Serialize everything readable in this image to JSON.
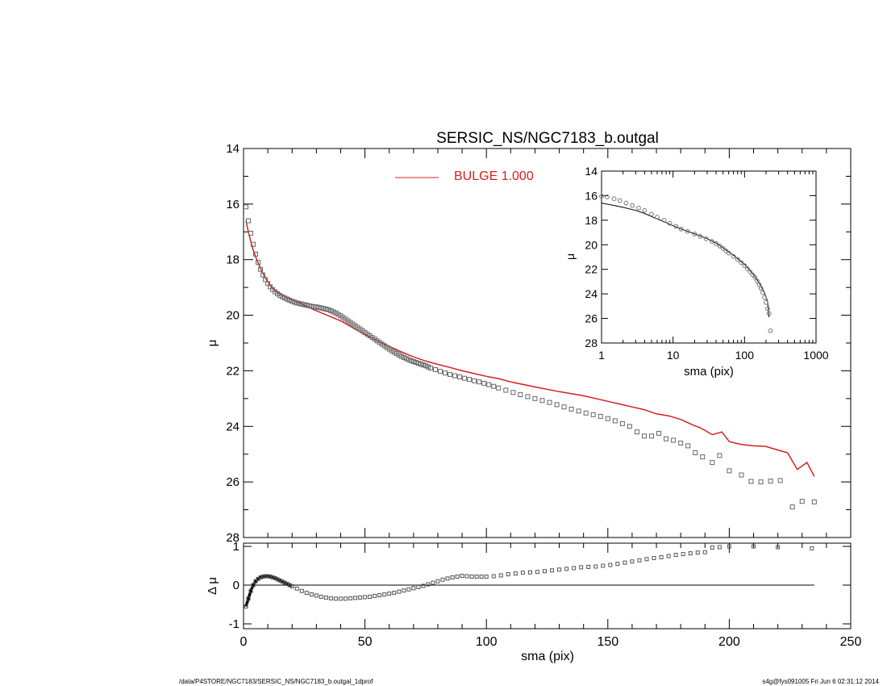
{
  "chart_data": [
    {
      "type": "scatter",
      "title": "SERSIC_NS/NGC7183_b.outgal",
      "xlabel": "",
      "ylabel": "μ",
      "xlim": [
        0,
        250
      ],
      "ylim": [
        28,
        14
      ],
      "x_ticks": [
        "0",
        "50",
        "100",
        "150",
        "200",
        "250"
      ],
      "y_ticks": [
        "14",
        "16",
        "18",
        "20",
        "22",
        "24",
        "26",
        "28"
      ],
      "legend": {
        "label": "BULGE  1.000",
        "color": "#d62020",
        "placement": "top-center"
      },
      "series": [
        {
          "role": "observed profile (squares)",
          "color": "#666666",
          "x": [
            1,
            2,
            3,
            4,
            5,
            6,
            7,
            8,
            9,
            10,
            11,
            12,
            13,
            14,
            15,
            16,
            17,
            18,
            19,
            20,
            21,
            22,
            23,
            24,
            25,
            26,
            27,
            28,
            29,
            30,
            31,
            32,
            33,
            34,
            35,
            36,
            37,
            38,
            39,
            40,
            41,
            42,
            43,
            44,
            45,
            46,
            47,
            48,
            49,
            50,
            51,
            52,
            53,
            54,
            55,
            56,
            57,
            58,
            59,
            60,
            61,
            62,
            63,
            64,
            65,
            66,
            67,
            68,
            69,
            70,
            71,
            72,
            73,
            74,
            75,
            76,
            77,
            79,
            81,
            83,
            85,
            87,
            89,
            91,
            93,
            95,
            97,
            99,
            101,
            103,
            105,
            108,
            111,
            114,
            117,
            120,
            123,
            126,
            129,
            132,
            135,
            138,
            141,
            144,
            147,
            150,
            153,
            156,
            159,
            162,
            165,
            168,
            171,
            174,
            177,
            180,
            183,
            186,
            189,
            193,
            196,
            200,
            205,
            209,
            213,
            217,
            221,
            226,
            230,
            235
          ],
          "y": [
            16.1,
            16.6,
            17.05,
            17.45,
            17.8,
            18.1,
            18.35,
            18.55,
            18.72,
            18.86,
            18.98,
            19.08,
            19.16,
            19.23,
            19.29,
            19.34,
            19.38,
            19.42,
            19.46,
            19.5,
            19.53,
            19.56,
            19.58,
            19.6,
            19.62,
            19.64,
            19.66,
            19.68,
            19.7,
            19.7,
            19.72,
            19.74,
            19.76,
            19.78,
            19.8,
            19.84,
            19.88,
            19.92,
            19.97,
            20.02,
            20.08,
            20.14,
            20.2,
            20.26,
            20.32,
            20.38,
            20.44,
            20.5,
            20.56,
            20.62,
            20.68,
            20.74,
            20.8,
            20.86,
            20.92,
            20.98,
            21.04,
            21.1,
            21.16,
            21.22,
            21.28,
            21.33,
            21.38,
            21.43,
            21.48,
            21.52,
            21.56,
            21.6,
            21.64,
            21.67,
            21.7,
            21.73,
            21.76,
            21.79,
            21.82,
            21.86,
            21.9,
            21.96,
            22.02,
            22.08,
            22.13,
            22.18,
            22.22,
            22.27,
            22.31,
            22.36,
            22.4,
            22.45,
            22.5,
            22.56,
            22.62,
            22.7,
            22.78,
            22.86,
            22.93,
            23.0,
            23.07,
            23.14,
            23.22,
            23.3,
            23.38,
            23.45,
            23.52,
            23.58,
            23.64,
            23.72,
            23.8,
            23.9,
            24.0,
            24.2,
            24.35,
            24.35,
            24.25,
            24.45,
            24.5,
            24.6,
            24.7,
            24.95,
            25.1,
            25.3,
            25.05,
            25.6,
            25.75,
            25.98,
            26.0,
            25.97,
            25.95,
            26.9,
            26.7,
            26.72
          ]
        },
        {
          "role": "BULGE model",
          "color": "#d62020",
          "x": [
            1,
            2,
            3,
            4,
            5,
            6,
            7,
            8,
            9,
            10,
            11,
            12,
            13,
            14,
            15,
            16,
            17,
            18,
            19,
            20,
            22,
            25,
            28,
            30,
            33,
            36,
            40,
            45,
            50,
            55,
            60,
            65,
            70,
            75,
            80,
            85,
            90,
            95,
            100,
            105,
            110,
            120,
            130,
            140,
            150,
            160,
            165,
            170,
            175,
            180,
            185,
            188,
            190,
            193,
            197,
            200,
            205,
            210,
            215,
            220,
            224,
            228,
            232,
            235
          ],
          "y": [
            16.6,
            17.0,
            17.35,
            17.65,
            17.9,
            18.12,
            18.32,
            18.5,
            18.66,
            18.8,
            18.92,
            19.02,
            19.1,
            19.17,
            19.23,
            19.28,
            19.33,
            19.37,
            19.41,
            19.45,
            19.52,
            19.64,
            19.76,
            19.84,
            19.95,
            20.06,
            20.2,
            20.45,
            20.7,
            20.92,
            21.12,
            21.32,
            21.5,
            21.65,
            21.77,
            21.88,
            22.0,
            22.1,
            22.2,
            22.28,
            22.4,
            22.58,
            22.75,
            22.9,
            23.1,
            23.3,
            23.4,
            23.55,
            23.62,
            23.75,
            23.95,
            24.05,
            24.15,
            24.3,
            24.2,
            24.55,
            24.65,
            24.7,
            24.72,
            24.85,
            24.95,
            25.55,
            25.3,
            25.8
          ]
        }
      ]
    },
    {
      "type": "scatter",
      "title": "",
      "xlabel": "sma (pix)",
      "ylabel": "μ",
      "x_scale": "log",
      "xlim": [
        1,
        1000
      ],
      "ylim": [
        28,
        14
      ],
      "x_ticks": [
        "1",
        "10",
        "100",
        "1000"
      ],
      "y_ticks": [
        "14",
        "16",
        "18",
        "20",
        "22",
        "24",
        "26",
        "28"
      ],
      "series": [
        {
          "role": "observed profile (circles)",
          "color": "#777777",
          "x": [
            1,
            1.2,
            1.5,
            1.8,
            2.2,
            2.7,
            3.3,
            4,
            5,
            6,
            7.5,
            9,
            11,
            13,
            16,
            20,
            24,
            29,
            35,
            40,
            45,
            50,
            55,
            60,
            70,
            80,
            90,
            100,
            110,
            120,
            130,
            140,
            150,
            160,
            170,
            180,
            190,
            200,
            210,
            220,
            230
          ],
          "y": [
            16.05,
            16.1,
            16.25,
            16.4,
            16.6,
            16.8,
            17.0,
            17.2,
            17.5,
            17.75,
            18.0,
            18.25,
            18.5,
            18.72,
            18.92,
            19.12,
            19.32,
            19.52,
            19.72,
            19.9,
            20.1,
            20.3,
            20.5,
            20.68,
            20.95,
            21.2,
            21.45,
            21.7,
            21.95,
            22.2,
            22.45,
            22.65,
            22.95,
            23.25,
            23.55,
            23.9,
            24.3,
            24.7,
            25.2,
            25.6,
            27.0
          ]
        },
        {
          "role": "model profiles (lines)",
          "color": "#000000",
          "x": [
            1,
            1.5,
            2,
            3,
            4,
            5,
            7,
            10,
            15,
            20,
            30,
            40,
            50,
            70,
            100,
            130,
            160,
            190,
            210,
            220
          ],
          "y": [
            16.6,
            16.8,
            16.95,
            17.2,
            17.45,
            17.7,
            18.05,
            18.45,
            18.85,
            19.1,
            19.5,
            19.85,
            20.25,
            20.85,
            21.6,
            22.35,
            23.1,
            23.9,
            24.6,
            25.9
          ]
        }
      ]
    },
    {
      "type": "scatter",
      "title": "",
      "xlabel": "sma (pix)",
      "ylabel": "Δ μ",
      "xlim": [
        0,
        250
      ],
      "ylim": [
        -1,
        1
      ],
      "x_ticks": [
        "0",
        "50",
        "100",
        "150",
        "200",
        "250"
      ],
      "y_ticks": [
        "1",
        "0",
        "-1"
      ],
      "series": [
        {
          "role": "residuals",
          "color": "#555555",
          "x": [
            1,
            2,
            3,
            4,
            5,
            6,
            7,
            8,
            9,
            10,
            11,
            12,
            13,
            14,
            15,
            16,
            17,
            18,
            19,
            20,
            22,
            24,
            26,
            28,
            30,
            32,
            34,
            36,
            38,
            40,
            42,
            44,
            46,
            48,
            50,
            52,
            54,
            56,
            58,
            60,
            62,
            64,
            66,
            68,
            70,
            72,
            74,
            76,
            78,
            80,
            82,
            84,
            86,
            88,
            90,
            92,
            94,
            96,
            98,
            100,
            103,
            106,
            109,
            112,
            115,
            118,
            121,
            124,
            127,
            130,
            133,
            136,
            139,
            142,
            145,
            148,
            151,
            154,
            157,
            160,
            163,
            166,
            169,
            172,
            175,
            178,
            181,
            184,
            187,
            190,
            193,
            196,
            200,
            210,
            220,
            234
          ],
          "y": [
            -0.55,
            -0.35,
            -0.15,
            0.0,
            0.1,
            0.16,
            0.2,
            0.22,
            0.23,
            0.23,
            0.22,
            0.2,
            0.18,
            0.15,
            0.12,
            0.09,
            0.06,
            0.03,
            0.0,
            -0.03,
            -0.09,
            -0.15,
            -0.2,
            -0.24,
            -0.27,
            -0.3,
            -0.32,
            -0.34,
            -0.35,
            -0.35,
            -0.35,
            -0.34,
            -0.33,
            -0.32,
            -0.31,
            -0.3,
            -0.28,
            -0.26,
            -0.24,
            -0.22,
            -0.2,
            -0.17,
            -0.14,
            -0.11,
            -0.08,
            -0.05,
            -0.02,
            0.02,
            0.06,
            0.1,
            0.14,
            0.17,
            0.2,
            0.22,
            0.24,
            0.23,
            0.22,
            0.22,
            0.22,
            0.22,
            0.23,
            0.25,
            0.28,
            0.3,
            0.32,
            0.33,
            0.34,
            0.36,
            0.38,
            0.4,
            0.42,
            0.44,
            0.46,
            0.47,
            0.48,
            0.5,
            0.52,
            0.55,
            0.58,
            0.61,
            0.64,
            0.67,
            0.7,
            0.72,
            0.75,
            0.78,
            0.8,
            0.82,
            0.84,
            0.85,
            0.97,
            0.98,
            1.0,
            1.0,
            0.98,
            0.95
          ]
        }
      ]
    }
  ],
  "footer": {
    "left": "/data/P4STORE/NGC7183/SERSIC_NS/NGC7183_b.outgal_1dprof",
    "right": "s4g@fys091005  Fri Jun  6 02:31:12 2014"
  }
}
